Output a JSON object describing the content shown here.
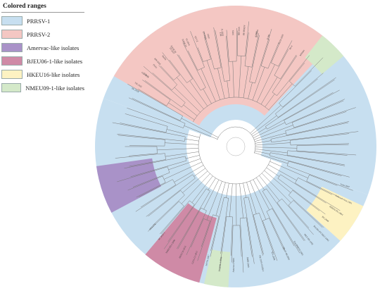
{
  "legend": {
    "title": "Colored ranges",
    "items": [
      {
        "label": "PRRSV-1",
        "color": "#c7dff0"
      },
      {
        "label": "PRRSV-2",
        "color": "#f4c7c3"
      },
      {
        "label": "Amervac-like isolates",
        "color": "#a992c8"
      },
      {
        "label": "BJEU06-1-like isolates",
        "color": "#cf8aa6"
      },
      {
        "label": "HKEU16-like isolates",
        "color": "#fdf2c2"
      },
      {
        "label": "NMEU09-1-like isolates",
        "color": "#d4e9c9"
      }
    ]
  },
  "leaves": [
    "Lena-2007",
    "Lelystad-virus-1991",
    "PRRSV-EU-2004",
    "BE-2008",
    "Porcilis-DV-MLV-1993",
    "MLV-DV-1992",
    "EuroPRRSV-2003",
    "SD-01-08-2003",
    "WV-2008",
    "DK-2010-10358-1",
    "IMIB-2009",
    "Amervac-PRRS",
    "BJEU06-1-2006",
    "Jx0701-2007",
    "GZ11-G1-2011",
    "HKEU16-2016",
    "NMEU09-1-2009",
    "SC-2020-1",
    "HKEU16",
    "SX-2018",
    "GD-2015",
    "HN-2016",
    "FJ-2017",
    "TJ-2014",
    "LN-2015",
    "JL-2018",
    "HB-2019",
    "ZJ-2016",
    "VR-2332",
    "CH-1a",
    "JXA1",
    "HuN4",
    "NADC30",
    "NADC34",
    "QYYZ",
    "GM2",
    "TJM",
    "SD16",
    "HP-PRRSV",
    "CHR6",
    "JL580",
    "SD53-1603",
    "BJ-4",
    "MN184"
  ]
}
